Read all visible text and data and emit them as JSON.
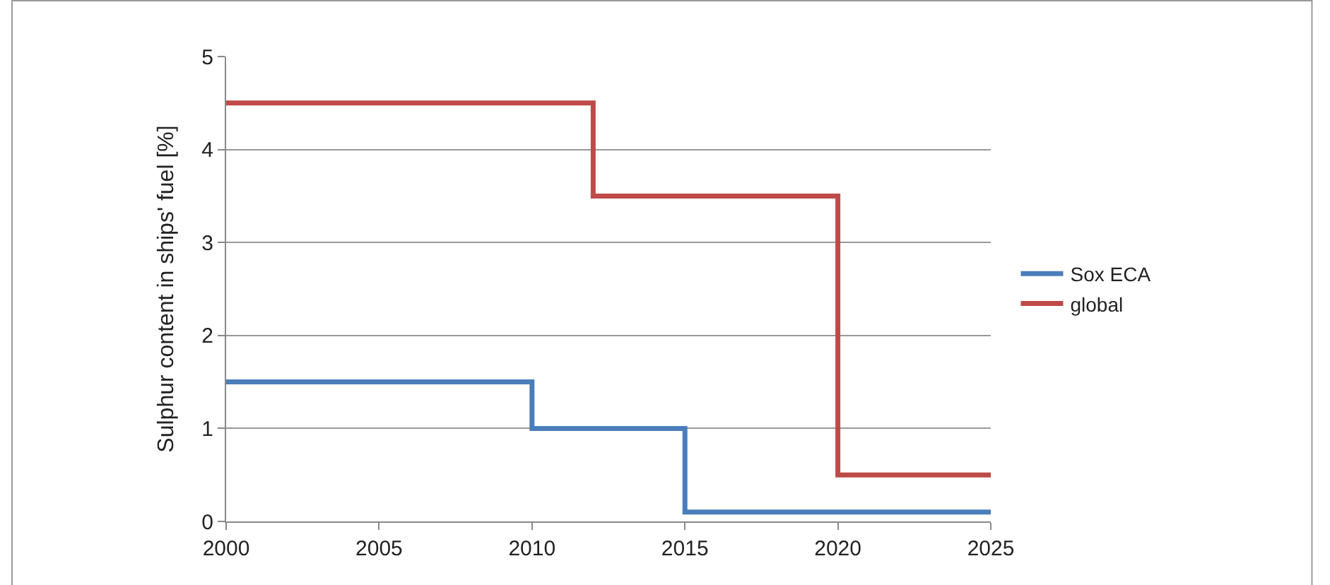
{
  "chart_data": {
    "type": "step",
    "ylabel": "Sulphur content in ships' fuel [%]",
    "xlim": [
      2000,
      2025
    ],
    "xticks": [
      2000,
      2005,
      2010,
      2015,
      2020,
      2025
    ],
    "ylim": [
      0,
      5
    ],
    "yticks": [
      0,
      1,
      2,
      3,
      4,
      5
    ],
    "grid": "y",
    "legend": "right",
    "series": [
      {
        "name": "Sox ECA",
        "color": "#4a7ebb",
        "x": [
          2000,
          2010,
          2015,
          2025
        ],
        "values": [
          1.5,
          1.0,
          0.1,
          0.1
        ]
      },
      {
        "name": "global",
        "color": "#be4b48",
        "x": [
          2000,
          2012,
          2020,
          2025
        ],
        "values": [
          4.5,
          3.5,
          0.5,
          0.5
        ]
      }
    ]
  }
}
